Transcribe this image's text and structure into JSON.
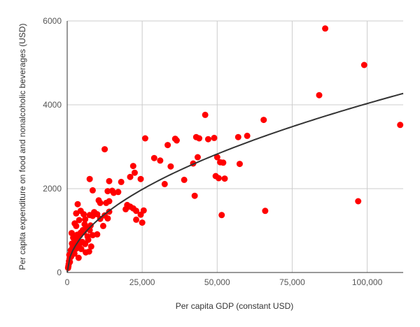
{
  "chart_data": {
    "type": "scatter",
    "title": "",
    "xlabel": "Per capita GDP (constant USD)",
    "ylabel": "Per capita expenditure on food and nonalcoholic beverages (USD)",
    "xlim": [
      0,
      112000
    ],
    "ylim": [
      0,
      6000
    ],
    "x_ticks": [
      0,
      25000,
      50000,
      75000,
      100000
    ],
    "x_tick_labels": [
      "0",
      "25,000",
      "50,000",
      "75,000",
      "100,000"
    ],
    "y_ticks": [
      0,
      2000,
      4000,
      6000
    ],
    "y_tick_labels": [
      "0",
      "2000",
      "4000",
      "6000"
    ],
    "grid": true,
    "colors": {
      "points": "#ff0000",
      "trendline": "#333333",
      "grid": "#cccccc",
      "axis": "#333333"
    },
    "series": [
      {
        "marker": "circle",
        "points": [
          [
            86000,
            5820
          ],
          [
            99000,
            4950
          ],
          [
            84000,
            4230
          ],
          [
            111000,
            3520
          ],
          [
            65500,
            3640
          ],
          [
            97000,
            1700
          ],
          [
            66000,
            1470
          ],
          [
            46000,
            3760
          ],
          [
            43000,
            3230
          ],
          [
            44000,
            3200
          ],
          [
            47000,
            3180
          ],
          [
            49000,
            3210
          ],
          [
            57000,
            3230
          ],
          [
            60000,
            3260
          ],
          [
            50000,
            2750
          ],
          [
            51000,
            2630
          ],
          [
            52000,
            2620
          ],
          [
            57500,
            2590
          ],
          [
            49500,
            2300
          ],
          [
            50500,
            2250
          ],
          [
            52500,
            2240
          ],
          [
            51500,
            1370
          ],
          [
            42500,
            1830
          ],
          [
            42000,
            2600
          ],
          [
            43500,
            2750
          ],
          [
            36000,
            3190
          ],
          [
            36500,
            3150
          ],
          [
            33500,
            3040
          ],
          [
            26000,
            3200
          ],
          [
            29000,
            2730
          ],
          [
            31000,
            2670
          ],
          [
            34500,
            2530
          ],
          [
            39000,
            2210
          ],
          [
            32500,
            2110
          ],
          [
            22000,
            2540
          ],
          [
            21000,
            2280
          ],
          [
            22500,
            2380
          ],
          [
            24500,
            2230
          ],
          [
            12500,
            2940
          ],
          [
            7500,
            2230
          ],
          [
            8500,
            1960
          ],
          [
            14000,
            2180
          ],
          [
            17000,
            1920
          ],
          [
            18000,
            2160
          ],
          [
            13500,
            1940
          ],
          [
            15000,
            1950
          ],
          [
            15500,
            1900
          ],
          [
            20000,
            1610
          ],
          [
            21000,
            1570
          ],
          [
            22000,
            1530
          ],
          [
            23000,
            1470
          ],
          [
            25500,
            1480
          ],
          [
            24500,
            1380
          ],
          [
            23000,
            1260
          ],
          [
            25000,
            1190
          ],
          [
            19500,
            1510
          ],
          [
            13000,
            1660
          ],
          [
            14000,
            1700
          ],
          [
            10500,
            1720
          ],
          [
            11000,
            1660
          ],
          [
            12500,
            1360
          ],
          [
            14000,
            1450
          ],
          [
            11000,
            1280
          ],
          [
            13500,
            1290
          ],
          [
            9000,
            1440
          ],
          [
            8500,
            1350
          ],
          [
            7500,
            1370
          ],
          [
            10000,
            1390
          ],
          [
            12000,
            1110
          ],
          [
            3500,
            1630
          ],
          [
            3000,
            1410
          ],
          [
            4500,
            1470
          ],
          [
            5500,
            1390
          ],
          [
            4000,
            1250
          ],
          [
            6000,
            1270
          ],
          [
            2500,
            1170
          ],
          [
            1500,
            940
          ],
          [
            2000,
            830
          ],
          [
            2500,
            780
          ],
          [
            3000,
            1110
          ],
          [
            4500,
            950
          ],
          [
            5500,
            960
          ],
          [
            6500,
            1050
          ],
          [
            7500,
            1010
          ],
          [
            8500,
            890
          ],
          [
            10000,
            910
          ],
          [
            7000,
            780
          ],
          [
            6000,
            680
          ],
          [
            5000,
            730
          ],
          [
            4000,
            660
          ],
          [
            3000,
            570
          ],
          [
            2000,
            520
          ],
          [
            1500,
            470
          ],
          [
            1000,
            400
          ],
          [
            800,
            330
          ],
          [
            600,
            270
          ],
          [
            500,
            200
          ],
          [
            400,
            150
          ],
          [
            300,
            110
          ],
          [
            700,
            420
          ],
          [
            1200,
            530
          ],
          [
            1800,
            600
          ],
          [
            2200,
            700
          ],
          [
            3500,
            800
          ],
          [
            4200,
            880
          ],
          [
            5200,
            1010
          ],
          [
            6800,
            860
          ],
          [
            4700,
            560
          ],
          [
            6200,
            480
          ],
          [
            7300,
            500
          ],
          [
            8000,
            620
          ],
          [
            3800,
            350
          ],
          [
            2700,
            640
          ],
          [
            1600,
            690
          ],
          [
            900,
            250
          ],
          [
            1300,
            380
          ],
          [
            2400,
            450
          ],
          [
            3300,
            900
          ],
          [
            5800,
            1150
          ],
          [
            7800,
            1120
          ]
        ]
      }
    ],
    "trendline": {
      "type": "power",
      "coefficient": 11.1,
      "exponent": 0.512,
      "x_start": 0,
      "x_end": 112000
    }
  }
}
